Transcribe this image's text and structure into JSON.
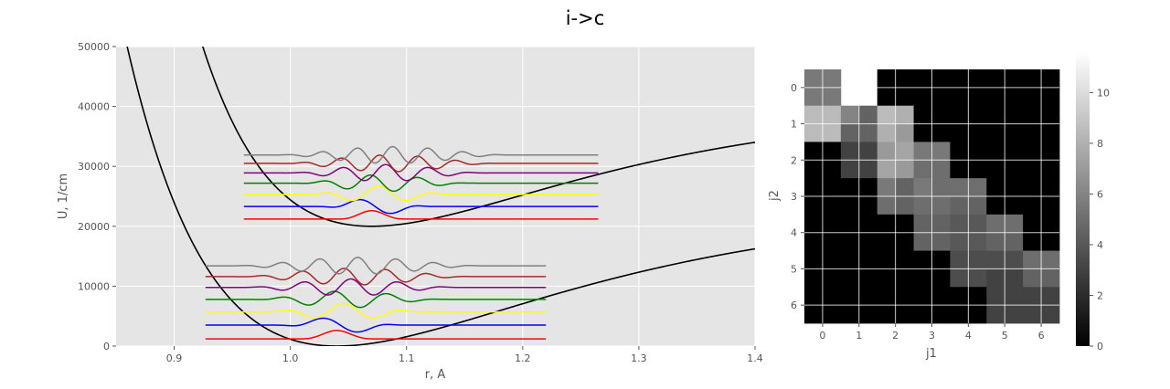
{
  "figure": {
    "title": "i->c"
  },
  "chart_data": [
    {
      "type": "line",
      "title": "",
      "xlabel": "r, A",
      "ylabel": "U, 1/cm",
      "xlim": [
        0.85,
        1.4
      ],
      "ylim": [
        0,
        50000
      ],
      "xticks": [
        0.9,
        1.0,
        1.1,
        1.2,
        1.3,
        1.4
      ],
      "xtick_labels": [
        "0.9",
        "1.0",
        "1.1",
        "1.2",
        "1.3",
        "1.4"
      ],
      "yticks": [
        0,
        10000,
        20000,
        30000,
        40000,
        50000
      ],
      "ytick_labels": [
        "0",
        "10000",
        "20000",
        "30000",
        "40000",
        "50000"
      ],
      "grid": true,
      "background": "#e5e5e5",
      "potentials": [
        {
          "state": "lower",
          "r_min": 1.04,
          "De": 23300,
          "T0": 0,
          "a": 5.0,
          "color": "#000000"
        },
        {
          "state": "upper",
          "r_min": 1.07,
          "De": 20000,
          "T0": 20000,
          "a": 5.5,
          "color": "#000000"
        }
      ],
      "wavefunction_colors": [
        "#ff0000",
        "#0000ff",
        "#ffff00",
        "#008000",
        "#800080",
        "#a52a2a",
        "#808080"
      ],
      "wavefunction_sets": [
        {
          "state": "lower",
          "x_range": [
            0.927,
            1.22
          ],
          "center": 1.04,
          "levels": [
            1200,
            3500,
            5700,
            7800,
            9800,
            11600,
            13400
          ],
          "amplitude": 1400,
          "widths": [
            0.012,
            0.02,
            0.026,
            0.031,
            0.035,
            0.038,
            0.041
          ],
          "skew": [
            0,
            0.003,
            0.006,
            0.009,
            0.012,
            0.015,
            0.018
          ]
        },
        {
          "state": "upper",
          "x_range": [
            0.96,
            1.265
          ],
          "center": 1.07,
          "levels": [
            21200,
            23300,
            25300,
            27200,
            28900,
            30500,
            31900
          ],
          "amplitude": 1400,
          "widths": [
            0.011,
            0.018,
            0.024,
            0.028,
            0.032,
            0.035,
            0.038
          ],
          "skew": [
            0,
            0.003,
            0.006,
            0.009,
            0.012,
            0.015,
            0.018
          ]
        }
      ]
    },
    {
      "type": "heatmap",
      "title": "",
      "xlabel": "j1",
      "ylabel": "j2",
      "x_categories": [
        "0",
        "1",
        "2",
        "3",
        "4",
        "5",
        "6"
      ],
      "y_categories": [
        "0",
        "1",
        "2",
        "3",
        "4",
        "5",
        "6"
      ],
      "colormap": "gray",
      "vmin": 0,
      "vmax": 11.6,
      "colorbar_ticks": [
        0,
        2,
        4,
        6,
        8,
        10
      ],
      "colorbar_tick_labels": [
        "0",
        "2",
        "4",
        "6",
        "8",
        "10"
      ],
      "grid": true,
      "rows": [
        [
          [
            5.5,
            6.0
          ],
          [
            6.0,
            5.5
          ],
          [
            null,
            null
          ],
          [
            0,
            0
          ],
          [
            0,
            0
          ],
          [
            0,
            0
          ],
          [
            0,
            0
          ],
          [
            0,
            0
          ],
          [
            0,
            0
          ],
          [
            0,
            0
          ],
          [
            0,
            0
          ],
          [
            0,
            0
          ],
          [
            0,
            0
          ],
          [
            0,
            0
          ]
        ],
        [
          [
            8.5,
            8.5
          ],
          [
            6.0,
            4.5
          ],
          [
            8.5,
            8.0
          ],
          [
            0,
            0
          ],
          [
            0,
            0
          ],
          [
            0,
            0
          ],
          [
            0,
            0
          ],
          [
            0,
            0
          ],
          [
            0,
            0
          ],
          [
            0,
            0
          ],
          [
            0,
            0
          ],
          [
            0,
            0
          ],
          [
            0,
            0
          ],
          [
            0,
            0
          ]
        ],
        [
          [
            0,
            3.0
          ],
          [
            5.5,
            7.0
          ],
          [
            5.0,
            0
          ],
          [
            0,
            0
          ],
          [
            0,
            0
          ],
          [
            0,
            0
          ],
          [
            0,
            0
          ],
          [
            0,
            0
          ],
          [
            0,
            0
          ],
          [
            0,
            0
          ],
          [
            0,
            0
          ],
          [
            0,
            0
          ],
          [
            0,
            0
          ],
          [
            0,
            0
          ]
        ]
      ],
      "matrix": [
        [
          5.5,
          5.5,
          null,
          null,
          0,
          0,
          0,
          0,
          0,
          0,
          0,
          0,
          0,
          0
        ],
        [
          5.5,
          5.5,
          null,
          null,
          0,
          0,
          0,
          0,
          0,
          0,
          0,
          0,
          0,
          0
        ],
        [
          8.5,
          8.5,
          6.0,
          4.5,
          8.5,
          8.0,
          0,
          0,
          0,
          0,
          0,
          0,
          0,
          0
        ],
        [
          8.5,
          8.5,
          4.5,
          4.5,
          8.0,
          7.0,
          0,
          0,
          0,
          0,
          0,
          0,
          0,
          0
        ],
        [
          0,
          0,
          3.0,
          3.0,
          7.0,
          7.5,
          5.5,
          5.5,
          0,
          0,
          0,
          0,
          0,
          0
        ],
        [
          0,
          0,
          3.0,
          3.0,
          7.5,
          7.0,
          5.0,
          5.0,
          0,
          0,
          0,
          0,
          0,
          0
        ],
        [
          0,
          0,
          0,
          0,
          5.5,
          4.5,
          5.5,
          5.0,
          5.0,
          5.0,
          0,
          0,
          0,
          0
        ],
        [
          0,
          0,
          0,
          0,
          5.0,
          4.5,
          5.0,
          5.0,
          4.5,
          4.5,
          0,
          0,
          0,
          0
        ],
        [
          0,
          0,
          0,
          0,
          0,
          0,
          4.5,
          4.5,
          4.0,
          4.0,
          5.0,
          5.0,
          0,
          0
        ],
        [
          0,
          0,
          0,
          0,
          0,
          0,
          4.5,
          4.5,
          4.0,
          4.0,
          4.5,
          4.5,
          0,
          0
        ],
        [
          0,
          0,
          0,
          0,
          0,
          0,
          0,
          0,
          3.5,
          3.5,
          3.5,
          3.5,
          5.0,
          5.0
        ],
        [
          0,
          0,
          0,
          0,
          0,
          0,
          0,
          0,
          3.5,
          3.5,
          3.0,
          3.0,
          4.5,
          4.5
        ],
        [
          0,
          0,
          0,
          0,
          0,
          0,
          0,
          0,
          0,
          0,
          3.0,
          3.0,
          3.0,
          3.0
        ],
        [
          0,
          0,
          0,
          0,
          0,
          0,
          0,
          0,
          0,
          0,
          3.0,
          3.0,
          3.0,
          3.0
        ]
      ]
    }
  ]
}
